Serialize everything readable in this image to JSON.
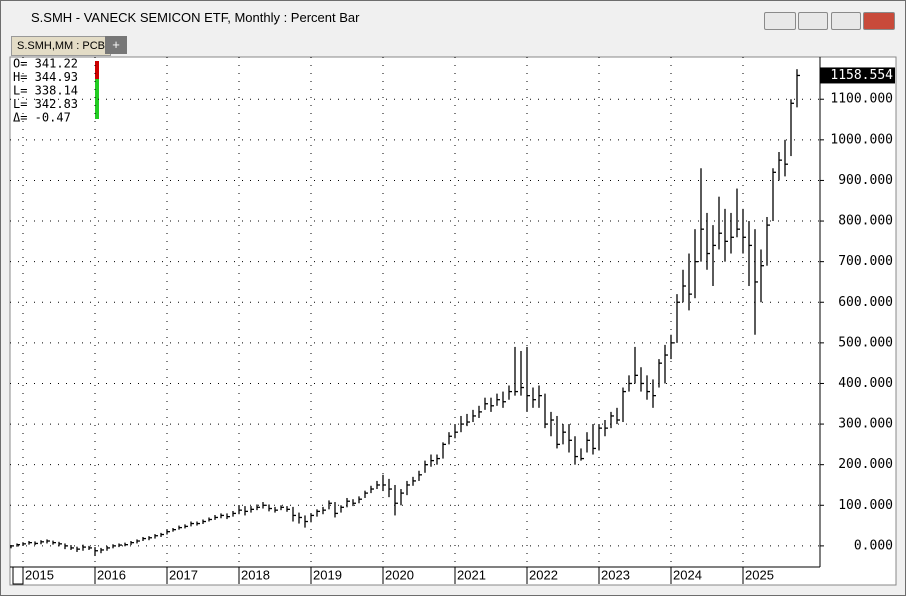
{
  "window": {
    "title": "S.SMH - VANECK SEMICON ETF, Monthly : Percent Bar",
    "tab": "S.SMH,MM : PCB",
    "add_tab": "+"
  },
  "cursor_readout": [
    "O= 341.22",
    "H= 344.93",
    "L= 338.14",
    "L= 342.83",
    "Δ=  -0.47"
  ],
  "chart_data": {
    "type": "ohlc",
    "color": "#000000",
    "grid": true,
    "categories": [
      null,
      null,
      "2015",
      null,
      null,
      null,
      null,
      null,
      null,
      null,
      null,
      null,
      null,
      null,
      "2016",
      null,
      null,
      null,
      null,
      null,
      null,
      null,
      null,
      null,
      null,
      null,
      "2017",
      null,
      null,
      null,
      null,
      null,
      null,
      null,
      null,
      null,
      null,
      null,
      "2018",
      null,
      null,
      null,
      null,
      null,
      null,
      null,
      null,
      null,
      null,
      null,
      "2019",
      null,
      null,
      null,
      null,
      null,
      null,
      null,
      null,
      null,
      null,
      null,
      "2020",
      null,
      null,
      null,
      null,
      null,
      null,
      null,
      null,
      null,
      null,
      null,
      "2021",
      null,
      null,
      null,
      null,
      null,
      null,
      null,
      null,
      null,
      null,
      null,
      "2022",
      null,
      null,
      null,
      null,
      null,
      null,
      null,
      null,
      null,
      null,
      null,
      "2023",
      null,
      null,
      null,
      null,
      null,
      null,
      null,
      null,
      null,
      null,
      null,
      "2024",
      null,
      null,
      null,
      null,
      null,
      null,
      null,
      null,
      null,
      null,
      null,
      "2025",
      null,
      null,
      null,
      null,
      null,
      null,
      null,
      null,
      null
    ],
    "values": [
      0,
      3,
      5,
      8,
      6,
      10,
      12,
      8,
      5,
      0,
      -5,
      -8,
      -3,
      -5,
      -12,
      -10,
      -5,
      0,
      2,
      3,
      8,
      12,
      18,
      20,
      25,
      28,
      35,
      40,
      45,
      48,
      55,
      55,
      60,
      65,
      70,
      75,
      72,
      80,
      88,
      85,
      90,
      95,
      100,
      92,
      88,
      95,
      90,
      75,
      70,
      60,
      75,
      85,
      88,
      105,
      80,
      95,
      110,
      105,
      115,
      130,
      140,
      150,
      150,
      140,
      105,
      130,
      150,
      160,
      175,
      200,
      210,
      215,
      250,
      270,
      280,
      300,
      305,
      320,
      330,
      350,
      345,
      360,
      355,
      380,
      380,
      390,
      370,
      360,
      370,
      300,
      310,
      250,
      280,
      260,
      220,
      215,
      260,
      240,
      290,
      290,
      320,
      310,
      380,
      400,
      420,
      400,
      380,
      370,
      450,
      470,
      500,
      600,
      640,
      620,
      700,
      780,
      720,
      740,
      770,
      750,
      760,
      780,
      760,
      740,
      650,
      690,
      790,
      920,
      950,
      940,
      1090,
      1158.554
    ],
    "high": [
      2,
      6,
      9,
      12,
      11,
      14,
      16,
      13,
      10,
      6,
      2,
      -2,
      3,
      0,
      -3,
      -5,
      0,
      4,
      6,
      8,
      12,
      16,
      22,
      24,
      29,
      32,
      40,
      44,
      50,
      53,
      60,
      60,
      65,
      70,
      76,
      80,
      80,
      86,
      100,
      98,
      98,
      102,
      108,
      102,
      96,
      100,
      98,
      96,
      82,
      75,
      80,
      90,
      96,
      112,
      108,
      100,
      118,
      115,
      122,
      136,
      148,
      160,
      175,
      165,
      150,
      140,
      160,
      170,
      185,
      210,
      225,
      225,
      255,
      280,
      300,
      320,
      325,
      335,
      345,
      365,
      365,
      375,
      380,
      395,
      490,
      480,
      490,
      390,
      395,
      375,
      330,
      320,
      300,
      300,
      270,
      240,
      280,
      300,
      300,
      310,
      330,
      340,
      390,
      420,
      490,
      440,
      420,
      410,
      460,
      495,
      520,
      620,
      680,
      720,
      780,
      930,
      820,
      790,
      860,
      830,
      820,
      880,
      830,
      800,
      780,
      730,
      810,
      930,
      970,
      1000,
      1100,
      1174
    ],
    "low": [
      -6,
      -2,
      0,
      3,
      2,
      4,
      6,
      3,
      -1,
      -8,
      -10,
      -15,
      -12,
      -10,
      -25,
      -18,
      -12,
      -6,
      -3,
      -1,
      2,
      6,
      12,
      14,
      18,
      22,
      28,
      35,
      40,
      43,
      48,
      50,
      54,
      60,
      64,
      68,
      66,
      72,
      78,
      75,
      82,
      88,
      92,
      85,
      82,
      88,
      84,
      60,
      55,
      45,
      58,
      72,
      78,
      90,
      70,
      82,
      95,
      98,
      105,
      118,
      130,
      140,
      135,
      120,
      75,
      100,
      125,
      148,
      160,
      180,
      195,
      200,
      215,
      250,
      265,
      280,
      295,
      305,
      315,
      335,
      330,
      345,
      340,
      360,
      370,
      370,
      330,
      340,
      340,
      290,
      270,
      240,
      250,
      230,
      200,
      210,
      230,
      225,
      235,
      270,
      290,
      300,
      305,
      380,
      400,
      380,
      360,
      340,
      390,
      400,
      460,
      500,
      600,
      580,
      610,
      700,
      680,
      640,
      730,
      700,
      720,
      760,
      720,
      640,
      520,
      600,
      690,
      800,
      900,
      910,
      960,
      1080
    ],
    "last_value": 1158.554,
    "ylim": [
      -52,
      1204
    ],
    "yticks": [
      {
        "value": 0,
        "label": "0.000"
      },
      {
        "value": 100,
        "label": "100.000"
      },
      {
        "value": 200,
        "label": "200.000"
      },
      {
        "value": 300,
        "label": "300.000"
      },
      {
        "value": 400,
        "label": "400.000"
      },
      {
        "value": 500,
        "label": "500.000"
      },
      {
        "value": 600,
        "label": "600.000"
      },
      {
        "value": 700,
        "label": "700.000"
      },
      {
        "value": 800,
        "label": "800.000"
      },
      {
        "value": 900,
        "label": "900.000"
      },
      {
        "value": 1000,
        "label": "1000.000"
      },
      {
        "value": 1100,
        "label": "1100.000"
      }
    ]
  }
}
